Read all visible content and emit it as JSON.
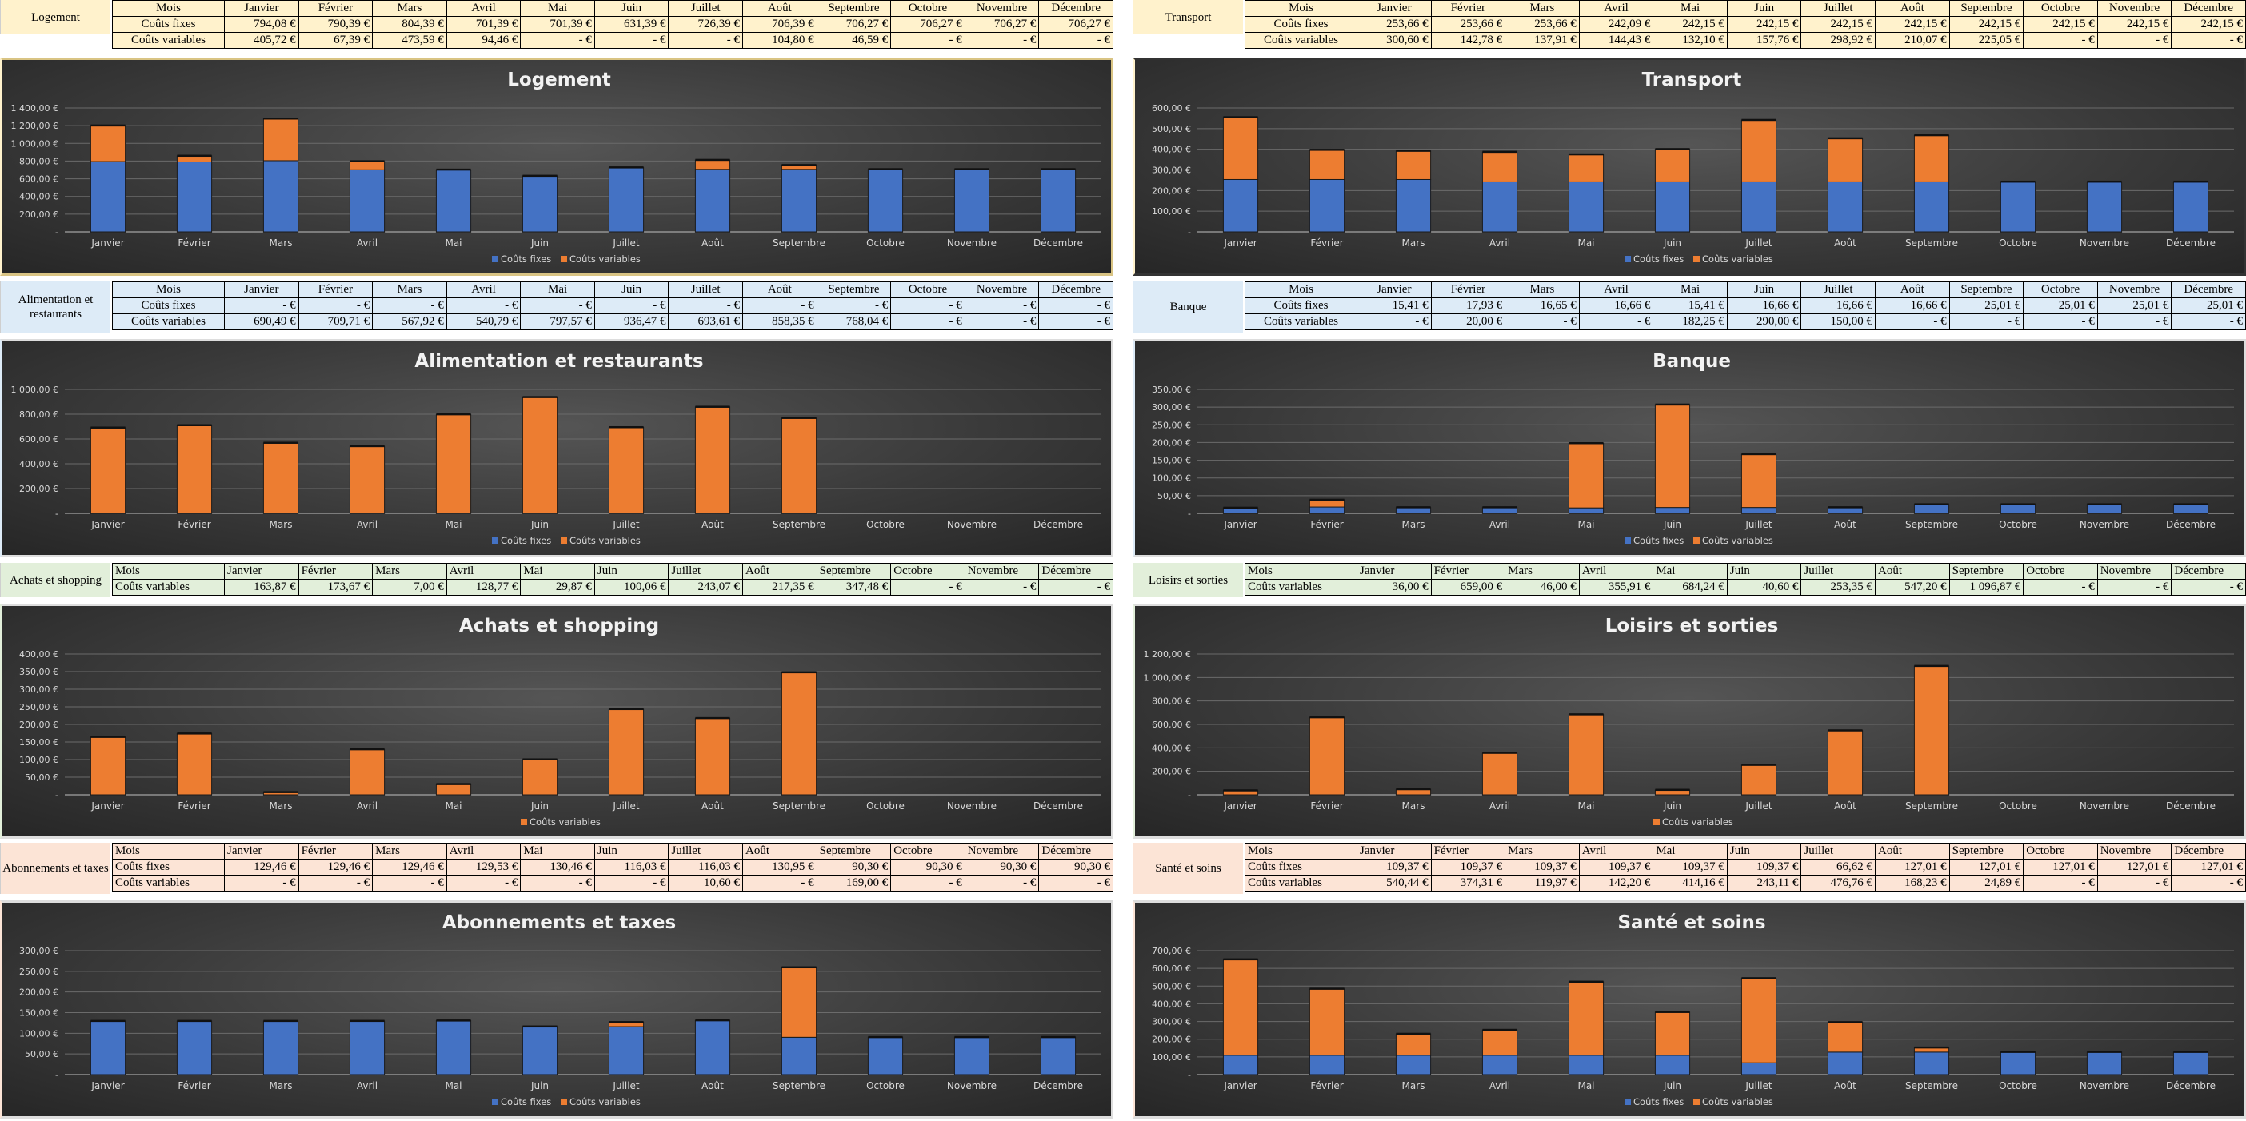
{
  "months": [
    "Janvier",
    "Février",
    "Mars",
    "Avril",
    "Mai",
    "Juin",
    "Juillet",
    "Août",
    "Septembre",
    "Octobre",
    "Novembre",
    "Décembre"
  ],
  "labels": {
    "mois": "Mois",
    "fixed": "Coûts fixes",
    "variable": "Coûts variables"
  },
  "colors": {
    "fixed": "#4472c4",
    "variable": "#ed7d31"
  },
  "categories": [
    {
      "key": "logement",
      "name": "Logement",
      "tint": "#fff2cc",
      "rows": [
        "fixed",
        "variable"
      ],
      "fixed_text": [
        "794,08",
        "790,39",
        "804,39",
        "701,39",
        "701,39",
        "631,39",
        "726,39",
        "706,39",
        "706,27",
        "706,27",
        "706,27",
        "706,27"
      ],
      "variable_text": [
        "405,72",
        "67,39",
        "473,59",
        "94,46",
        "-",
        "-",
        "-",
        "104,80",
        "46,59",
        "-",
        "-",
        "-"
      ],
      "chart_data": {
        "type": "bar",
        "stacked": true,
        "title": "Logement",
        "categories": [
          "Janvier",
          "Février",
          "Mars",
          "Avril",
          "Mai",
          "Juin",
          "Juillet",
          "Août",
          "Septembre",
          "Octobre",
          "Novembre",
          "Décembre"
        ],
        "series": [
          {
            "name": "Coûts fixes",
            "values": [
              794.08,
              790.39,
              804.39,
              701.39,
              701.39,
              631.39,
              726.39,
              706.39,
              706.27,
              706.27,
              706.27,
              706.27
            ]
          },
          {
            "name": "Coûts variables",
            "values": [
              405.72,
              67.39,
              473.59,
              94.46,
              0,
              0,
              0,
              104.8,
              46.59,
              0,
              0,
              0
            ]
          }
        ],
        "ylim": [
          0,
          1400
        ],
        "yticks": [
          0,
          200,
          400,
          600,
          800,
          1000,
          1200,
          1400
        ],
        "ytick_labels": [
          "-",
          "200,00 €",
          "400,00 €",
          "600,00 €",
          "800,00 €",
          "1 000,00 €",
          "1 200,00 €",
          "1 400,00 €"
        ],
        "legend": "bottom"
      }
    },
    {
      "key": "transport",
      "name": "Transport",
      "tint": "#fff2cc",
      "rows": [
        "fixed",
        "variable"
      ],
      "fixed_text": [
        "253,66",
        "253,66",
        "253,66",
        "242,09",
        "242,15",
        "242,15",
        "242,15",
        "242,15",
        "242,15",
        "242,15",
        "242,15",
        "242,15"
      ],
      "variable_text": [
        "300,60",
        "142,78",
        "137,91",
        "144,43",
        "132,10",
        "157,76",
        "298,92",
        "210,07",
        "225,05",
        "-",
        "-",
        "-"
      ],
      "chart_data": {
        "type": "bar",
        "stacked": true,
        "title": "Transport",
        "categories": [
          "Janvier",
          "Février",
          "Mars",
          "Avril",
          "Mai",
          "Juin",
          "Juillet",
          "Août",
          "Septembre",
          "Octobre",
          "Novembre",
          "Décembre"
        ],
        "series": [
          {
            "name": "Coûts fixes",
            "values": [
              253.66,
              253.66,
              253.66,
              242.09,
              242.15,
              242.15,
              242.15,
              242.15,
              242.15,
              242.15,
              242.15,
              242.15
            ]
          },
          {
            "name": "Coûts variables",
            "values": [
              300.6,
              142.78,
              137.91,
              144.43,
              132.1,
              157.76,
              298.92,
              210.07,
              225.05,
              0,
              0,
              0
            ]
          }
        ],
        "ylim": [
          0,
          600
        ],
        "yticks": [
          0,
          100,
          200,
          300,
          400,
          500,
          600
        ],
        "ytick_labels": [
          "-",
          "100,00 €",
          "200,00 €",
          "300,00 €",
          "400,00 €",
          "500,00 €",
          "600,00 €"
        ],
        "legend": "bottom"
      }
    },
    {
      "key": "alimentation",
      "name": "Alimentation et restaurants",
      "tint": "#ddebf7",
      "rows": [
        "mois",
        "fixed",
        "variable"
      ],
      "fixed_text": [
        "-",
        "-",
        "-",
        "-",
        "-",
        "-",
        "-",
        "-",
        "-",
        "-",
        "-",
        "-"
      ],
      "variable_text": [
        "690,49",
        "709,71",
        "567,92",
        "540,79",
        "797,57",
        "936,47",
        "693,61",
        "858,35",
        "768,04",
        "-",
        "-",
        "-"
      ],
      "chart_data": {
        "type": "bar",
        "stacked": true,
        "title": "Alimentation et restaurants",
        "categories": [
          "Janvier",
          "Février",
          "Mars",
          "Avril",
          "Mai",
          "Juin",
          "Juillet",
          "Août",
          "Septembre",
          "Octobre",
          "Novembre",
          "Décembre"
        ],
        "series": [
          {
            "name": "Coûts fixes",
            "values": [
              0,
              0,
              0,
              0,
              0,
              0,
              0,
              0,
              0,
              0,
              0,
              0
            ]
          },
          {
            "name": "Coûts variables",
            "values": [
              690.49,
              709.71,
              567.92,
              540.79,
              797.57,
              936.47,
              693.61,
              858.35,
              768.04,
              0,
              0,
              0
            ]
          }
        ],
        "ylim": [
          0,
          1000
        ],
        "yticks": [
          0,
          200,
          400,
          600,
          800,
          1000
        ],
        "ytick_labels": [
          "-",
          "200,00 €",
          "400,00 €",
          "600,00 €",
          "800,00 €",
          "1 000,00 €"
        ],
        "legend": "bottom"
      }
    },
    {
      "key": "banque",
      "name": "Banque",
      "tint": "#ddebf7",
      "rows": [
        "mois",
        "fixed",
        "variable"
      ],
      "fixed_text": [
        "15,41",
        "17,93",
        "16,65",
        "16,66",
        "15,41",
        "16,66",
        "16,66",
        "16,66",
        "25,01",
        "25,01",
        "25,01",
        "25,01"
      ],
      "variable_text": [
        "-",
        "20,00",
        "-",
        "-",
        "182,25",
        "290,00",
        "150,00",
        "-",
        "-",
        "-",
        "-",
        "-"
      ],
      "chart_data": {
        "type": "bar",
        "stacked": true,
        "title": "Banque",
        "categories": [
          "Janvier",
          "Février",
          "Mars",
          "Avril",
          "Mai",
          "Juin",
          "Juillet",
          "Août",
          "Septembre",
          "Octobre",
          "Novembre",
          "Décembre"
        ],
        "series": [
          {
            "name": "Coûts fixes",
            "values": [
              15.41,
              17.93,
              16.65,
              16.66,
              15.41,
              16.66,
              16.66,
              16.66,
              25.01,
              25.01,
              25.01,
              25.01
            ]
          },
          {
            "name": "Coûts variables",
            "values": [
              0,
              20.0,
              0,
              0,
              182.25,
              290.0,
              150.0,
              0,
              0,
              0,
              0,
              0
            ]
          }
        ],
        "ylim": [
          0,
          350
        ],
        "yticks": [
          0,
          50,
          100,
          150,
          200,
          250,
          300,
          350
        ],
        "ytick_labels": [
          "-",
          "50,00 €",
          "100,00 €",
          "150,00 €",
          "200,00 €",
          "250,00 €",
          "300,00 €",
          "350,00 €"
        ],
        "legend": "bottom"
      }
    },
    {
      "key": "achats",
      "name": "Achats et shopping",
      "tint": "#e2efda",
      "rows": [
        "mois",
        "variable"
      ],
      "variable_text": [
        "163,87",
        "173,67",
        "7,00",
        "128,77",
        "29,87",
        "100,06",
        "243,07",
        "217,35",
        "347,48",
        "-",
        "-",
        "-"
      ],
      "chart_data": {
        "type": "bar",
        "stacked": true,
        "title": "Achats et shopping",
        "categories": [
          "Janvier",
          "Février",
          "Mars",
          "Avril",
          "Mai",
          "Juin",
          "Juillet",
          "Août",
          "Septembre",
          "Octobre",
          "Novembre",
          "Décembre"
        ],
        "series": [
          {
            "name": "Coûts variables",
            "values": [
              163.87,
              173.67,
              7.0,
              128.77,
              29.87,
              100.06,
              243.07,
              217.35,
              347.48,
              0,
              0,
              0
            ]
          }
        ],
        "ylim": [
          0,
          400
        ],
        "yticks": [
          0,
          50,
          100,
          150,
          200,
          250,
          300,
          350,
          400
        ],
        "ytick_labels": [
          "-",
          "50,00 €",
          "100,00 €",
          "150,00 €",
          "200,00 €",
          "250,00 €",
          "300,00 €",
          "350,00 €",
          "400,00 €"
        ],
        "legend": "bottom"
      }
    },
    {
      "key": "loisirs",
      "name": "Loisirs et sorties",
      "tint": "#e2efda",
      "rows": [
        "mois",
        "variable"
      ],
      "variable_text": [
        "36,00",
        "659,00",
        "46,00",
        "355,91",
        "684,24",
        "40,60",
        "253,35",
        "547,20",
        "1 096,87",
        "-",
        "-",
        "-"
      ],
      "chart_data": {
        "type": "bar",
        "stacked": true,
        "title": "Loisirs et sorties",
        "categories": [
          "Janvier",
          "Février",
          "Mars",
          "Avril",
          "Mai",
          "Juin",
          "Juillet",
          "Août",
          "Septembre",
          "Octobre",
          "Novembre",
          "Décembre"
        ],
        "series": [
          {
            "name": "Coûts variables",
            "values": [
              36.0,
              659.0,
              46.0,
              355.91,
              684.24,
              40.6,
              253.35,
              547.2,
              1096.87,
              0,
              0,
              0
            ]
          }
        ],
        "ylim": [
          0,
          1200
        ],
        "yticks": [
          0,
          200,
          400,
          600,
          800,
          1000,
          1200
        ],
        "ytick_labels": [
          "-",
          "200,00 €",
          "400,00 €",
          "600,00 €",
          "800,00 €",
          "1 000,00 €",
          "1 200,00 €"
        ],
        "legend": "bottom"
      }
    },
    {
      "key": "abonnements",
      "name": "Abonnements et taxes",
      "tint": "#fce4d6",
      "rows": [
        "mois",
        "fixed",
        "variable"
      ],
      "fixed_text": [
        "129,46",
        "129,46",
        "129,46",
        "129,53",
        "130,46",
        "116,03",
        "116,03",
        "130,95",
        "90,30",
        "90,30",
        "90,30",
        "90,30"
      ],
      "variable_text": [
        "-",
        "-",
        "-",
        "-",
        "-",
        "-",
        "10,60",
        "-",
        "169,00",
        "-",
        "-",
        "-"
      ],
      "chart_data": {
        "type": "bar",
        "stacked": true,
        "title": "Abonnements et taxes",
        "categories": [
          "Janvier",
          "Février",
          "Mars",
          "Avril",
          "Mai",
          "Juin",
          "Juillet",
          "Août",
          "Septembre",
          "Octobre",
          "Novembre",
          "Décembre"
        ],
        "series": [
          {
            "name": "Coûts fixes",
            "values": [
              129.46,
              129.46,
              129.46,
              129.53,
              130.46,
              116.03,
              116.03,
              130.95,
              90.3,
              90.3,
              90.3,
              90.3
            ]
          },
          {
            "name": "Coûts variables",
            "values": [
              0,
              0,
              0,
              0,
              0,
              0,
              10.6,
              0,
              169.0,
              0,
              0,
              0
            ]
          }
        ],
        "ylim": [
          0,
          300
        ],
        "yticks": [
          0,
          50,
          100,
          150,
          200,
          250,
          300
        ],
        "ytick_labels": [
          "-",
          "50,00 €",
          "100,00 €",
          "150,00 €",
          "200,00 €",
          "250,00 €",
          "300,00 €"
        ],
        "legend": "bottom"
      }
    },
    {
      "key": "sante",
      "name": "Santé et soins",
      "tint": "#fce4d6",
      "rows": [
        "mois",
        "fixed",
        "variable"
      ],
      "fixed_text": [
        "109,37",
        "109,37",
        "109,37",
        "109,37",
        "109,37",
        "109,37",
        "66,62",
        "127,01",
        "127,01",
        "127,01",
        "127,01",
        "127,01"
      ],
      "variable_text": [
        "540,44",
        "374,31",
        "119,97",
        "142,20",
        "414,16",
        "243,11",
        "476,76",
        "168,23",
        "24,89",
        "-",
        "-",
        "-"
      ],
      "chart_data": {
        "type": "bar",
        "stacked": true,
        "title": "Santé et soins",
        "categories": [
          "Janvier",
          "Février",
          "Mars",
          "Avril",
          "Mai",
          "Juin",
          "Juillet",
          "Août",
          "Septembre",
          "Octobre",
          "Novembre",
          "Décembre"
        ],
        "series": [
          {
            "name": "Coûts fixes",
            "values": [
              109.37,
              109.37,
              109.37,
              109.37,
              109.37,
              109.37,
              66.62,
              127.01,
              127.01,
              127.01,
              127.01,
              127.01
            ]
          },
          {
            "name": "Coûts variables",
            "values": [
              540.44,
              374.31,
              119.97,
              142.2,
              414.16,
              243.11,
              476.76,
              168.23,
              24.89,
              0,
              0,
              0
            ]
          }
        ],
        "ylim": [
          0,
          700
        ],
        "yticks": [
          0,
          100,
          200,
          300,
          400,
          500,
          600,
          700
        ],
        "ytick_labels": [
          "-",
          "100,00 €",
          "200,00 €",
          "300,00 €",
          "400,00 €",
          "500,00 €",
          "600,00 €",
          "700,00 €"
        ],
        "legend": "bottom"
      }
    }
  ]
}
